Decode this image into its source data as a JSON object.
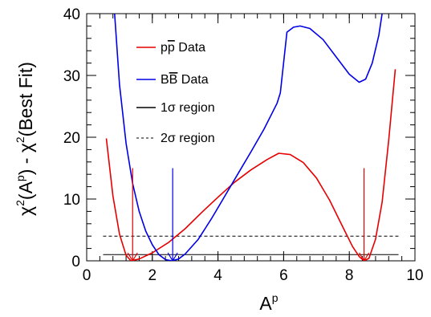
{
  "chart_data": {
    "type": "line",
    "xlabel": {
      "base": "A",
      "sup": "p"
    },
    "ylabel": {
      "pre": "χ",
      "sup1": "2",
      "mid": "(A",
      "sup2": "p",
      "post": ") - χ",
      "sup3": "2",
      "end": "(Best Fit)"
    },
    "xlim": [
      0,
      10
    ],
    "ylim": [
      0,
      40
    ],
    "x_ticks": [
      "0",
      "2",
      "4",
      "6",
      "8",
      "10"
    ],
    "y_ticks": [
      "0",
      "10",
      "20",
      "30",
      "40"
    ],
    "grid": false,
    "legend_position": "top-left",
    "series": [
      {
        "name": "pp̄ Data",
        "legend_parts": [
          "p",
          "p",
          " Data"
        ],
        "overline_index": 1,
        "color": "#e60000",
        "style": "solid",
        "points": [
          [
            0.6,
            19.8
          ],
          [
            0.8,
            10.5
          ],
          [
            1.0,
            4.3
          ],
          [
            1.2,
            0.9
          ],
          [
            1.35,
            0.0
          ],
          [
            1.6,
            0.3
          ],
          [
            2.0,
            1.3
          ],
          [
            2.5,
            3.0
          ],
          [
            3.0,
            5.2
          ],
          [
            3.5,
            7.8
          ],
          [
            4.0,
            10.3
          ],
          [
            4.5,
            12.7
          ],
          [
            5.0,
            14.7
          ],
          [
            5.5,
            16.4
          ],
          [
            5.85,
            17.4
          ],
          [
            6.2,
            17.2
          ],
          [
            6.6,
            15.9
          ],
          [
            7.0,
            13.4
          ],
          [
            7.4,
            9.8
          ],
          [
            7.8,
            5.5
          ],
          [
            8.1,
            2.3
          ],
          [
            8.3,
            0.7
          ],
          [
            8.45,
            0.0
          ],
          [
            8.6,
            0.4
          ],
          [
            8.8,
            3.5
          ],
          [
            9.0,
            9.5
          ],
          [
            9.2,
            19.5
          ],
          [
            9.4,
            31.0
          ]
        ]
      },
      {
        "name": "BB̄ Data",
        "legend_parts": [
          "B",
          "B",
          " Data"
        ],
        "overline_index": 1,
        "color": "#0000e6",
        "style": "solid",
        "points": [
          [
            0.85,
            40.0
          ],
          [
            1.0,
            28.5
          ],
          [
            1.2,
            19.0
          ],
          [
            1.4,
            12.5
          ],
          [
            1.6,
            8.0
          ],
          [
            1.8,
            4.8
          ],
          [
            2.0,
            2.6
          ],
          [
            2.2,
            1.0
          ],
          [
            2.4,
            0.2
          ],
          [
            2.6,
            0.0
          ],
          [
            2.8,
            0.3
          ],
          [
            3.0,
            1.1
          ],
          [
            3.4,
            3.5
          ],
          [
            3.8,
            6.8
          ],
          [
            4.2,
            10.4
          ],
          [
            4.6,
            14.0
          ],
          [
            5.0,
            17.6
          ],
          [
            5.4,
            21.3
          ],
          [
            5.8,
            25.5
          ],
          [
            5.9,
            27.2
          ],
          [
            6.1,
            37.0
          ],
          [
            6.3,
            37.8
          ],
          [
            6.5,
            38.0
          ],
          [
            6.8,
            37.6
          ],
          [
            7.2,
            35.8
          ],
          [
            7.6,
            33.0
          ],
          [
            8.0,
            30.2
          ],
          [
            8.3,
            28.9
          ],
          [
            8.5,
            29.4
          ],
          [
            8.7,
            32.0
          ],
          [
            8.9,
            36.5
          ],
          [
            9.0,
            40.0
          ]
        ]
      }
    ],
    "reference_lines": [
      {
        "name": "1σ region",
        "legend_parts": [
          "1σ region"
        ],
        "y": 1,
        "x_range": [
          0.5,
          9.5
        ],
        "style": "solid",
        "color": "#000000"
      },
      {
        "name": "2σ region",
        "legend_parts": [
          "2σ region"
        ],
        "y": 4,
        "x_range": [
          0.5,
          9.5
        ],
        "style": "dashed",
        "color": "#000000"
      }
    ],
    "arrows": [
      {
        "x": 1.4,
        "y_from": 15,
        "y_to": 0,
        "color": "#e60000"
      },
      {
        "x": 2.62,
        "y_from": 15,
        "y_to": 0,
        "color": "#0000e6"
      },
      {
        "x": 8.45,
        "y_from": 15,
        "y_to": 0,
        "color": "#e60000"
      }
    ]
  }
}
